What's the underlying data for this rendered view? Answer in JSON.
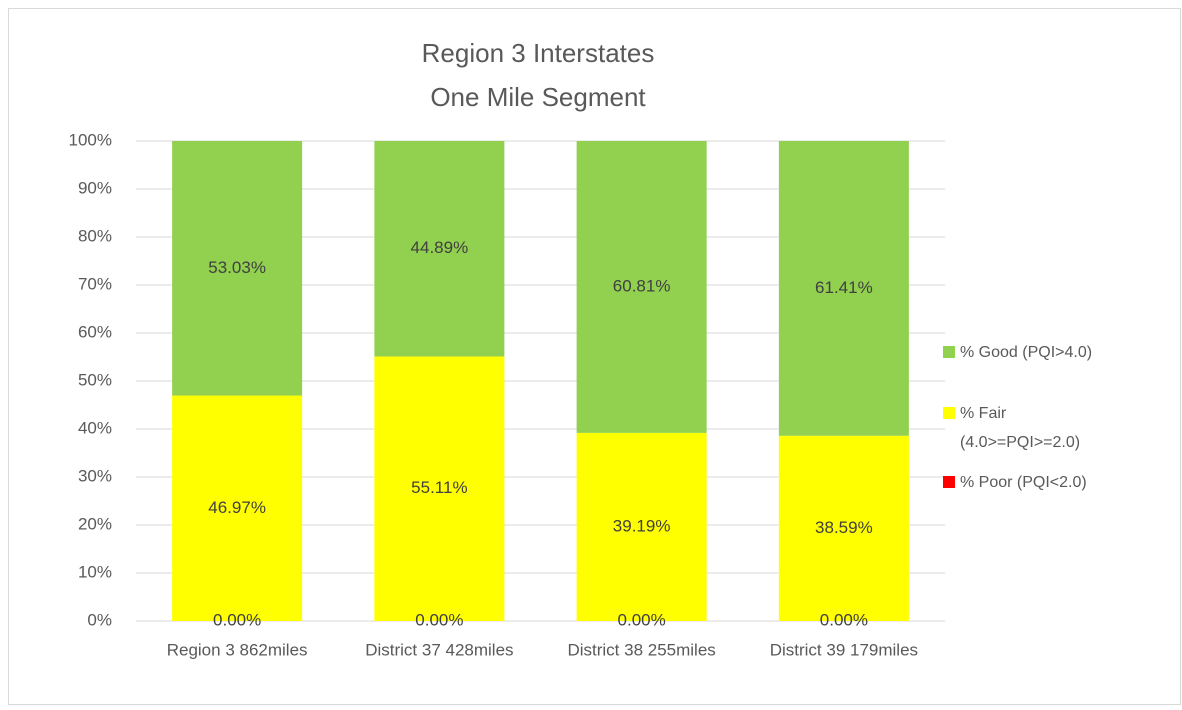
{
  "chart_data": {
    "type": "stacked_bar",
    "title": "Region 3 Interstates",
    "subtitle": "One Mile Segment",
    "categories": [
      "Region 3 862miles",
      "District 37 428miles",
      "District 38 255miles",
      "District 39 179miles"
    ],
    "series": [
      {
        "name": "% Poor (PQI<2.0)",
        "color": "#ff0000",
        "values": [
          0,
          0,
          0,
          0
        ],
        "value_labels": [
          "0.00%",
          "0.00%",
          "0.00%",
          "0.00%"
        ]
      },
      {
        "name": "% Fair (4.0>=PQI>=2.0)",
        "color": "#ffff00",
        "values": [
          46.97,
          55.11,
          39.19,
          38.59
        ],
        "value_labels": [
          "46.97%",
          "55.11%",
          "39.19%",
          "38.59%"
        ]
      },
      {
        "name": "% Good (PQI>4.0)",
        "color": "#92d050",
        "values": [
          53.03,
          44.89,
          60.81,
          61.41
        ],
        "value_labels": [
          "53.03%",
          "44.89%",
          "60.81%",
          "61.41%"
        ]
      }
    ],
    "ylim": [
      0,
      100
    ],
    "yticks": [
      {
        "value": 0,
        "label": "0%"
      },
      {
        "value": 10,
        "label": "10%"
      },
      {
        "value": 20,
        "label": "20%"
      },
      {
        "value": 30,
        "label": "30%"
      },
      {
        "value": 40,
        "label": "40%"
      },
      {
        "value": 50,
        "label": "50%"
      },
      {
        "value": 60,
        "label": "60%"
      },
      {
        "value": 70,
        "label": "70%"
      },
      {
        "value": 80,
        "label": "80%"
      },
      {
        "value": 90,
        "label": "90%"
      },
      {
        "value": 100,
        "label": "100%"
      }
    ],
    "grid": true,
    "legend": "right"
  }
}
